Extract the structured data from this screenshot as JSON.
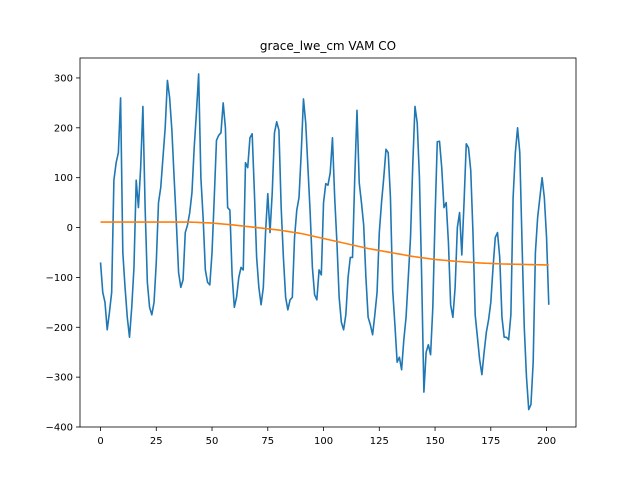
{
  "chart_data": {
    "type": "line",
    "title": "grace_lwe_cm VAM CO",
    "xlabel": "",
    "ylabel": "",
    "xlim": [
      -9.2,
      213.2
    ],
    "ylim": [
      -400,
      340
    ],
    "xticks": [
      0,
      25,
      50,
      75,
      100,
      125,
      150,
      175,
      200
    ],
    "yticks": [
      -400,
      -300,
      -200,
      -100,
      0,
      100,
      200,
      300
    ],
    "grid": false,
    "legend": "none",
    "colors": [
      "#1f77b4",
      "#ff7f0e"
    ],
    "series": [
      {
        "values": [
          -70,
          -130,
          -150,
          -205,
          -170,
          -130,
          95,
          130,
          150,
          260,
          -50,
          -120,
          -180,
          -220,
          -160,
          -80,
          95,
          40,
          120,
          243,
          40,
          -110,
          -160,
          -175,
          -150,
          -70,
          50,
          80,
          140,
          200,
          295,
          260,
          195,
          100,
          10,
          -90,
          -120,
          -105,
          -10,
          5,
          30,
          70,
          160,
          230,
          308,
          100,
          20,
          -85,
          -110,
          -115,
          -50,
          60,
          175,
          185,
          190,
          250,
          200,
          40,
          35,
          -95,
          -160,
          -140,
          -100,
          -80,
          -85,
          130,
          120,
          180,
          188,
          70,
          -60,
          -120,
          -155,
          -120,
          -10,
          68,
          -10,
          70,
          190,
          212,
          195,
          40,
          -60,
          -140,
          -165,
          -145,
          -140,
          -20,
          35,
          60,
          150,
          258,
          210,
          120,
          30,
          -80,
          -135,
          -145,
          -85,
          -95,
          50,
          88,
          85,
          110,
          180,
          60,
          -30,
          -140,
          -190,
          -205,
          -175,
          -100,
          -60,
          -60,
          100,
          235,
          90,
          50,
          5,
          -100,
          -180,
          -195,
          -215,
          -175,
          -130,
          -10,
          50,
          100,
          157,
          150,
          60,
          -125,
          -195,
          -270,
          -260,
          -285,
          -225,
          -180,
          -100,
          -20,
          125,
          243,
          210,
          100,
          -100,
          -330,
          -250,
          -235,
          -255,
          -160,
          20,
          172,
          173,
          120,
          40,
          50,
          -30,
          -155,
          -180,
          -120,
          0,
          30,
          -55,
          50,
          168,
          160,
          115,
          -10,
          -175,
          -220,
          -265,
          -295,
          -250,
          -210,
          -185,
          -150,
          -80,
          -20,
          -10,
          -60,
          -180,
          -220,
          -220,
          -225,
          -175,
          60,
          150,
          200,
          150,
          -30,
          -200,
          -300,
          -365,
          -355,
          -270,
          -50,
          20,
          60,
          100,
          60,
          -20,
          -155
        ]
      },
      {
        "values": [
          11,
          11,
          11,
          11,
          11,
          11,
          11,
          11,
          11,
          11,
          11,
          11,
          11,
          11,
          11,
          11,
          11,
          11,
          11,
          11,
          11,
          11,
          11,
          11,
          11,
          11,
          11,
          11,
          11,
          11,
          11,
          11,
          11,
          11,
          11,
          11,
          11,
          11,
          11,
          11,
          11,
          10.8,
          10.6,
          10.4,
          10.2,
          10,
          9.8,
          9.6,
          9.4,
          9.2,
          9,
          8.6,
          8.2,
          7.8,
          7.4,
          7,
          6.6,
          6.2,
          5.8,
          5.4,
          5,
          4.5,
          4,
          3.5,
          3,
          2.5,
          2,
          1.5,
          1,
          0.5,
          0,
          -0.5,
          -1,
          -1.5,
          -2,
          -2.5,
          -3,
          -3.5,
          -4,
          -4.5,
          -5,
          -5.7,
          -6.4,
          -7.1,
          -7.8,
          -8.5,
          -9.2,
          -9.9,
          -10.6,
          -11.3,
          -12,
          -13,
          -14,
          -15,
          -16,
          -17,
          -18,
          -19,
          -20,
          -21,
          -22,
          -23,
          -24,
          -25,
          -26,
          -27,
          -28,
          -29,
          -30,
          -31,
          -32,
          -33,
          -34,
          -35,
          -36,
          -37,
          -38,
          -39,
          -40,
          -41,
          -42,
          -42.8,
          -43.6,
          -44.4,
          -45.2,
          -46,
          -46.8,
          -47.6,
          -48.4,
          -49.2,
          -50,
          -50.8,
          -51.6,
          -52.4,
          -53.2,
          -54,
          -54.8,
          -55.6,
          -56.4,
          -57.2,
          -58,
          -58.6,
          -59.2,
          -59.8,
          -60.4,
          -61,
          -61.6,
          -62.2,
          -62.8,
          -63.4,
          -64,
          -64.4,
          -64.8,
          -65.2,
          -65.6,
          -66,
          -66.4,
          -66.8,
          -67.2,
          -67.6,
          -68,
          -68.3,
          -68.6,
          -68.9,
          -69.2,
          -69.5,
          -69.8,
          -70.1,
          -70.4,
          -70.7,
          -71,
          -71.2,
          -71.4,
          -71.6,
          -71.8,
          -72,
          -72.2,
          -72.4,
          -72.6,
          -72.8,
          -73,
          -73.1,
          -73.2,
          -73.3,
          -73.4,
          -73.5,
          -73.6,
          -73.7,
          -73.8,
          -73.9,
          -74,
          -74.1,
          -74.2,
          -74.3,
          -74.4,
          -74.5,
          -74.6,
          -74.7,
          -74.8,
          -74.9,
          -75,
          -75
        ]
      }
    ]
  }
}
